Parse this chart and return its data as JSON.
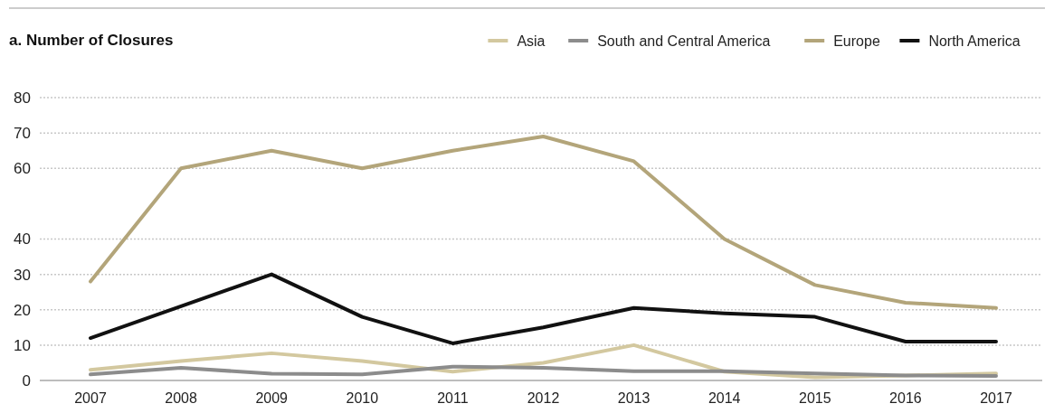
{
  "chart_data": {
    "type": "line",
    "title": "a. Number of Closures",
    "categories": [
      "2007",
      "2008",
      "2009",
      "2010",
      "2011",
      "2012",
      "2013",
      "2014",
      "2015",
      "2016",
      "2017"
    ],
    "series": [
      {
        "name": "Asia",
        "color": "#d3c89f",
        "values": [
          3,
          5.5,
          7.7,
          5.5,
          2.5,
          5,
          10,
          2.5,
          0.9,
          1.4,
          2
        ]
      },
      {
        "name": "South and Central America",
        "color": "#8c8c8c",
        "values": [
          1.7,
          3.6,
          1.9,
          1.7,
          3.9,
          3.6,
          2.6,
          2.6,
          2,
          1.4,
          1.3
        ]
      },
      {
        "name": "Europe",
        "color": "#b3a57a",
        "values": [
          28,
          60,
          65,
          60,
          65,
          69,
          62,
          40,
          27,
          22,
          20.5
        ]
      },
      {
        "name": "North America",
        "color": "#111111",
        "values": [
          12,
          21,
          30,
          18,
          10.5,
          15,
          20.5,
          19,
          18,
          11,
          11
        ]
      }
    ],
    "ylim": [
      0,
      80
    ],
    "yticks": [
      0,
      10,
      20,
      30,
      40,
      60,
      70,
      80
    ],
    "grid": "y",
    "legend": "top right",
    "line_style": "solid",
    "marker": "none"
  }
}
